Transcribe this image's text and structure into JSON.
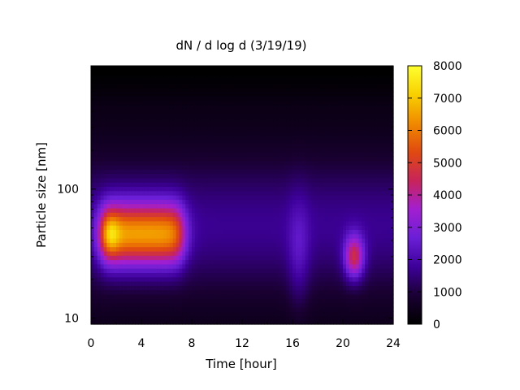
{
  "chart_data": {
    "type": "heatmap",
    "title": "dN / d log d (3/19/19)",
    "xlabel": "Time [hour]",
    "ylabel": "Particle size [nm]",
    "x_range": [
      0,
      24
    ],
    "y_range": [
      9,
      900
    ],
    "y_scale": "log",
    "x_ticks": [
      0,
      4,
      8,
      12,
      16,
      20,
      24
    ],
    "x_tick_labels": [
      "0",
      "4",
      "8",
      "12",
      "16",
      "20",
      "24"
    ],
    "y_major_ticks": [
      10,
      100
    ],
    "y_tick_labels": [
      "10",
      "100"
    ],
    "colorbar": {
      "range": [
        0,
        8000
      ],
      "ticks": [
        0,
        1000,
        2000,
        3000,
        4000,
        5000,
        6000,
        7000,
        8000
      ],
      "tick_labels": [
        "0",
        "1000",
        "2000",
        "3000",
        "4000",
        "5000",
        "6000",
        "7000",
        "8000"
      ],
      "colormap": "black-blue-purple-red-orange-yellow",
      "colors": [
        "#000000",
        "#1a0033",
        "#3d0099",
        "#6a1fd6",
        "#a21fd0",
        "#c8245a",
        "#e04a10",
        "#f08a00",
        "#f8d000",
        "#ffff30"
      ]
    },
    "features": [
      {
        "label": "",
        "t_start": 0.8,
        "t_end": 7.3,
        "d_center_nm": 45,
        "peak": 6200
      },
      {
        "label": "",
        "t_start": 19.8,
        "t_end": 22.0,
        "d_center_nm": 30,
        "peak": 4600
      }
    ],
    "background_level": 1400,
    "grid": false
  }
}
